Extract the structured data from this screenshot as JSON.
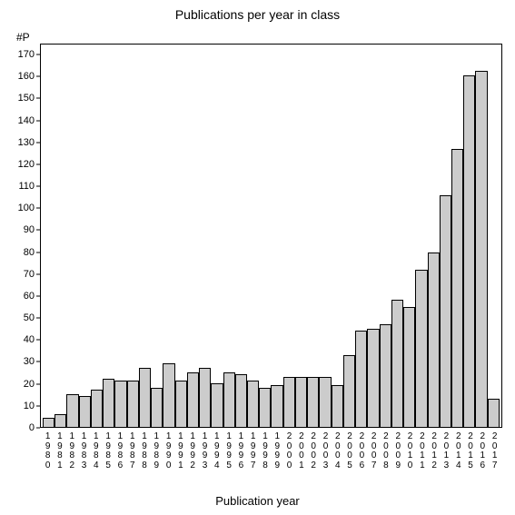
{
  "chart": {
    "type": "bar",
    "title": "Publications per year in class",
    "title_fontsize": 14,
    "x_axis_label": "Publication year",
    "x_axis_label_fontsize": 13,
    "y_axis_label": "#P",
    "y_axis_label_fontsize": 12,
    "background_color": "#ffffff",
    "bar_fill_color": "#cccccc",
    "bar_border_color": "#000000",
    "axis_border_color": "#000000",
    "text_color": "#000000",
    "ylim": [
      0,
      175
    ],
    "y_ticks": [
      0,
      10,
      20,
      30,
      40,
      50,
      60,
      70,
      80,
      90,
      100,
      110,
      120,
      130,
      140,
      150,
      160,
      170
    ],
    "categories": [
      "1980",
      "1981",
      "1982",
      "1983",
      "1984",
      "1985",
      "1986",
      "1987",
      "1988",
      "1989",
      "1990",
      "1991",
      "1992",
      "1993",
      "1994",
      "1995",
      "1996",
      "1997",
      "1998",
      "1999",
      "2000",
      "2001",
      "2002",
      "2003",
      "2004",
      "2005",
      "2006",
      "2007",
      "2008",
      "2009",
      "2010",
      "2011",
      "2012",
      "2013",
      "2014",
      "2015",
      "2016",
      "2017"
    ],
    "values": [
      4,
      6,
      15,
      14,
      17,
      22,
      21,
      21,
      27,
      18,
      29,
      21,
      25,
      27,
      20,
      25,
      24,
      21,
      18,
      19,
      23,
      23,
      23,
      23,
      19,
      33,
      44,
      45,
      47,
      58,
      55,
      72,
      80,
      106,
      127,
      161,
      163,
      13
    ],
    "tick_fontsize": 11,
    "x_tick_fontsize": 10
  }
}
